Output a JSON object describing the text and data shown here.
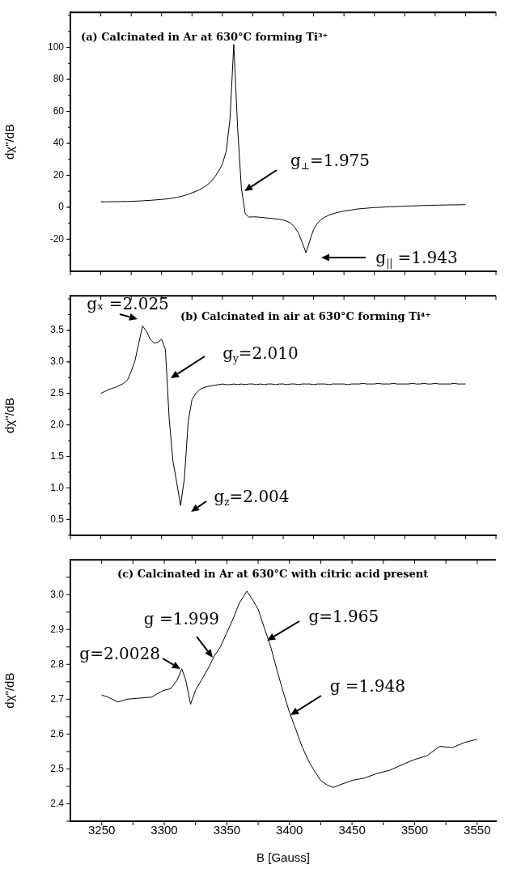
{
  "chart_data": [
    {
      "type": "line",
      "title": "(a) Calcinated in Ar at 630°C forming Ti³⁺",
      "ylabel": "dχ\"/dB",
      "tick_labels": "y",
      "marker": "none",
      "categories": [
        null,
        null,
        null,
        null,
        null,
        null,
        null,
        null,
        null,
        null,
        null,
        null,
        null,
        null,
        null,
        null,
        null,
        null,
        null,
        null,
        null,
        null,
        null,
        null,
        null,
        null,
        null,
        null,
        null,
        null,
        null,
        null,
        null,
        null,
        null,
        null,
        null,
        null,
        null,
        null,
        null,
        null,
        null,
        null,
        null,
        null,
        null,
        null,
        null,
        null,
        null,
        null,
        null,
        null,
        null,
        null,
        null,
        null,
        null,
        null,
        null,
        null,
        null,
        null,
        null,
        null,
        null,
        null,
        null,
        null,
        null,
        null,
        null,
        null,
        null,
        null,
        null,
        null,
        null,
        null,
        null,
        null,
        null,
        null,
        null,
        null,
        null,
        null,
        null,
        null,
        null,
        null,
        null,
        null,
        null,
        null,
        null
      ],
      "series": [
        {
          "color": "#000000",
          "values": [
            3.4,
            3.4,
            3.4,
            3.5,
            3.5,
            3.5,
            3.6,
            3.6,
            3.7,
            3.8,
            3.9,
            4.0,
            4.2,
            4.3,
            4.5,
            4.7,
            4.9,
            5.1,
            5.4,
            5.8,
            6.2,
            6.7,
            7.3,
            8.1,
            9.0,
            9.9,
            11,
            12.4,
            14,
            16,
            19,
            22.5,
            27,
            35,
            55,
            102,
            50,
            12,
            -4,
            -6.2,
            -6,
            -6.1,
            -6.3,
            -6.5,
            -6.8,
            -7,
            -7.3,
            -7.6,
            -8,
            -8.8,
            -10,
            -12.5,
            -16,
            -22,
            -28.5,
            -21,
            -14,
            -10,
            -7.6,
            -6.2,
            -5,
            -4.2,
            -3.5,
            -2.9,
            -2.4,
            -2,
            -1.7,
            -1.3,
            -1,
            -0.8,
            -0.6,
            -0.4,
            -0.2,
            -0.1,
            0,
            0.2,
            0.3,
            0.4,
            0.5,
            0.6,
            0.7,
            0.8,
            0.8,
            0.9,
            1,
            1.1,
            1.1,
            1.2,
            1.3,
            1.3,
            1.4,
            1.4,
            1.5,
            1.5,
            1.5,
            1.6,
            1.6
          ]
        }
      ],
      "ylim": [
        -40,
        122
      ],
      "yticks": [
        -20,
        0,
        20,
        40,
        60,
        80,
        100
      ],
      "annotations": [
        "g$_{⊥}$=1.975",
        "g$_{||}$ =1.943"
      ]
    },
    {
      "type": "line",
      "title": "(b) Calcinated in air at 630°C forming Ti⁴⁺",
      "ylabel": "dχ\"/dB",
      "tick_labels": "y",
      "marker": "none",
      "categories": [
        null,
        null,
        null,
        null,
        null,
        null,
        null,
        null,
        null,
        null,
        null,
        null,
        null,
        null,
        null,
        null,
        null,
        null,
        null,
        null,
        null,
        null,
        null,
        null,
        null,
        null,
        null,
        null,
        null,
        null,
        null,
        null,
        null,
        null,
        null,
        null,
        null,
        null,
        null,
        null,
        null,
        null,
        null,
        null,
        null,
        null,
        null,
        null,
        null,
        null,
        null,
        null,
        null,
        null,
        null,
        null,
        null,
        null,
        null,
        null,
        null,
        null,
        null,
        null,
        null,
        null,
        null,
        null,
        null,
        null,
        null,
        null,
        null,
        null,
        null,
        null,
        null,
        null,
        null,
        null,
        null,
        null,
        null,
        null,
        null,
        null,
        null,
        null,
        null,
        null,
        null,
        null,
        null,
        null,
        null,
        null,
        null
      ],
      "series": [
        {
          "color": "#000000",
          "values": [
            2.5,
            2.53,
            2.56,
            2.58,
            2.6,
            2.63,
            2.66,
            2.71,
            2.85,
            3.02,
            3.3,
            3.57,
            3.49,
            3.36,
            3.3,
            3.31,
            3.36,
            3.2,
            2.1,
            1.42,
            1.08,
            0.72,
            1.15,
            2.05,
            2.4,
            2.5,
            2.56,
            2.59,
            2.61,
            2.62,
            2.63,
            2.64,
            2.65,
            2.64,
            2.64,
            2.65,
            2.64,
            2.65,
            2.64,
            2.65,
            2.65,
            2.64,
            2.65,
            2.64,
            2.65,
            2.65,
            2.64,
            2.65,
            2.65,
            2.64,
            2.65,
            2.65,
            2.64,
            2.65,
            2.65,
            2.65,
            2.64,
            2.65,
            2.65,
            2.65,
            2.64,
            2.65,
            2.65,
            2.65,
            2.65,
            2.64,
            2.65,
            2.65,
            2.65,
            2.66,
            2.65,
            2.65,
            2.65,
            2.66,
            2.65,
            2.65,
            2.65,
            2.66,
            2.65,
            2.65,
            2.65,
            2.65,
            2.66,
            2.65,
            2.65,
            2.66,
            2.65,
            2.65,
            2.66,
            2.65,
            2.65,
            2.65,
            2.65,
            2.66,
            2.65,
            2.65,
            2.65
          ]
        }
      ],
      "ylim": [
        0.25,
        4.05
      ],
      "yticks": [
        0.5,
        {
          "value": 1,
          "label": "1.0"
        },
        1.5,
        {
          "value": 2,
          "label": "2.0"
        },
        2.5,
        {
          "value": 3,
          "label": "3.0"
        },
        3.5
      ],
      "annotations": [
        "gₓ =2.025",
        "g$_{y}$=2.010",
        "g$_{z}$=2.004"
      ]
    },
    {
      "type": "line",
      "title": "(c) Calcinated in Ar at 630°C with citric acid present",
      "xlabel": "B [Gauss]",
      "ylabel": "dχ\"/dB",
      "marker": "none",
      "series": [
        {
          "color": "#000000",
          "x": [
            3250,
            3255,
            3263,
            3270,
            3280,
            3290,
            3295,
            3300,
            3305,
            3310,
            3314,
            3317,
            3321,
            3325,
            3330,
            3335,
            3340,
            3345,
            3350,
            3355,
            3360,
            3366,
            3370,
            3375,
            3380,
            3385,
            3390,
            3395,
            3400,
            3405,
            3410,
            3415,
            3420,
            3425,
            3430,
            3435,
            3440,
            3450,
            3460,
            3470,
            3480,
            3490,
            3500,
            3510,
            3520,
            3530,
            3540,
            3550
          ],
          "values": [
            2.712,
            2.706,
            2.692,
            2.7,
            2.703,
            2.706,
            2.717,
            2.726,
            2.73,
            2.753,
            2.787,
            2.757,
            2.686,
            2.726,
            2.757,
            2.788,
            2.824,
            2.851,
            2.891,
            2.931,
            2.976,
            3.01,
            2.989,
            2.958,
            2.904,
            2.851,
            2.784,
            2.721,
            2.663,
            2.614,
            2.565,
            2.525,
            2.494,
            2.467,
            2.454,
            2.447,
            2.454,
            2.467,
            2.474,
            2.487,
            2.496,
            2.512,
            2.527,
            2.538,
            2.565,
            2.561,
            2.576,
            2.585
          ]
        }
      ],
      "xlim": [
        3225,
        3565
      ],
      "xticks": [
        3250,
        {
          "value": 3275,
          "label": null
        },
        3300,
        {
          "value": 3325,
          "label": null
        },
        3350,
        {
          "value": 3375,
          "label": null
        },
        3400,
        {
          "value": 3425,
          "label": null
        },
        3450,
        {
          "value": 3475,
          "label": null
        },
        3500,
        {
          "value": 3525,
          "label": null
        },
        3550
      ],
      "ylim": [
        2.35,
        3.1
      ],
      "yticks": [
        {
          "value": 2.35,
          "label": null
        },
        2.4,
        {
          "value": 2.45,
          "label": null
        },
        2.5,
        {
          "value": 2.55,
          "label": null
        },
        2.6,
        {
          "value": 2.65,
          "label": null
        },
        2.7,
        {
          "value": 2.75,
          "label": null
        },
        2.8,
        {
          "value": 2.85,
          "label": null
        },
        2.9,
        {
          "value": 2.95,
          "label": null
        },
        {
          "value": 3,
          "label": "3.0"
        },
        {
          "value": 3.05,
          "label": null
        }
      ],
      "annotations": [
        {
          "text": "g=2.0028",
          "x": 3313,
          "y": 2.787
        },
        {
          "text": "g =1.999",
          "x": 3339,
          "y": 2.82
        },
        {
          "text": "g=1.965",
          "x": 3382,
          "y": 2.869
        },
        {
          "text": "g =1.948",
          "x": 3401,
          "y": 2.654
        }
      ]
    }
  ]
}
